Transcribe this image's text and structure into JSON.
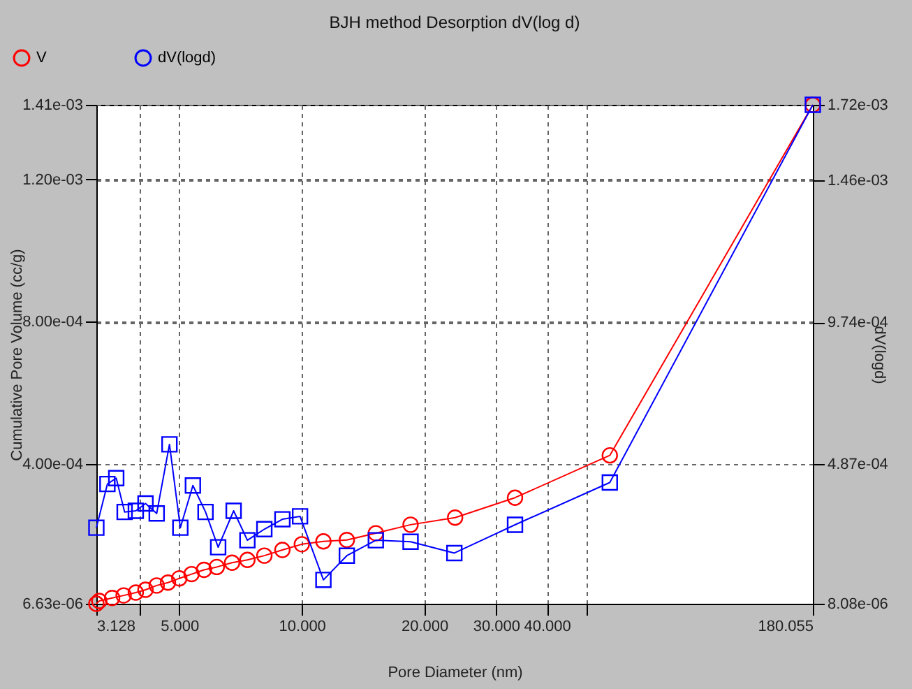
{
  "chart_data": {
    "type": "line",
    "title": "BJH method Desorption  dV(log d)",
    "xlabel": "Pore Diameter (nm)",
    "ylabel": "Cumulative Pore Volume (cc/g)",
    "y2label": "dV(logd)",
    "log": "x",
    "grid": true,
    "legend": "top left",
    "line_style": "solid",
    "xlim": [
      3.128,
      180.055
    ],
    "xticks": [
      3.128,
      {
        "value": 4,
        "label": null
      },
      {
        "value": 5,
        "label": "5.000"
      },
      {
        "value": 10,
        "label": "10.000"
      },
      {
        "value": 20,
        "label": "20.000"
      },
      {
        "value": 30,
        "label": "30.000"
      },
      {
        "value": 40,
        "label": "40.000"
      },
      {
        "value": 50,
        "label": null
      },
      180.055
    ],
    "ylim": [
      6.63e-06,
      0.00141
    ],
    "yticks": [
      {
        "value": 6.63e-06,
        "label": "6.63e-06"
      },
      {
        "value": 0.0004,
        "label": "4.00e-04"
      },
      {
        "value": 0.0008,
        "label": "8.00e-04"
      },
      {
        "value": 0.0012,
        "label": "1.20e-03"
      },
      {
        "value": 0.00141,
        "label": "1.41e-03"
      }
    ],
    "y2lim": [
      8.08e-06,
      0.00172
    ],
    "y2ticks": [
      {
        "value": 8.08e-06,
        "label": "8.08e-06"
      },
      {
        "value": 0.000487,
        "label": "4.87e-04"
      },
      {
        "value": 0.000974,
        "label": "9.74e-04"
      },
      {
        "value": 0.00146,
        "label": "1.46e-03"
      },
      {
        "value": 0.00172,
        "label": "1.72e-03"
      }
    ],
    "series": [
      {
        "name": "V",
        "color": "#ff0000",
        "marker": "circle",
        "x": [
          3.128,
          3.18,
          3.42,
          3.65,
          3.91,
          4.13,
          4.4,
          4.69,
          5.0,
          5.36,
          5.75,
          6.18,
          6.74,
          7.35,
          8.09,
          8.96,
          10.0,
          11.3,
          12.9,
          15.2,
          18.5,
          23.8,
          33.4,
          57.1,
          180.055
        ],
        "values": [
          6.63e-06,
          1.46e-05,
          2.3e-05,
          3e-05,
          3.8e-05,
          4.6e-05,
          5.8e-05,
          6.6e-05,
          7.8e-05,
          9e-05,
          0.000102,
          0.00011,
          0.000122,
          0.00013,
          0.000142,
          0.000158,
          0.000174,
          0.000182,
          0.000186,
          0.000205,
          0.000229,
          0.000249,
          0.000305,
          0.000424,
          0.00141
        ]
      },
      {
        "name": "dV(logd)",
        "color": "#0000ff",
        "marker": "square",
        "axis": "y2",
        "x": [
          3.128,
          3.33,
          3.5,
          3.67,
          3.91,
          4.13,
          4.4,
          4.73,
          5.03,
          5.4,
          5.8,
          6.23,
          6.8,
          7.35,
          8.09,
          8.96,
          9.9,
          11.3,
          12.9,
          15.2,
          18.5,
          23.7,
          33.4,
          57.1,
          180.055
        ],
        "values": [
          0.000269,
          0.000419,
          0.000439,
          0.000323,
          0.000327,
          0.000352,
          0.000318,
          0.000555,
          0.000269,
          0.000414,
          0.000323,
          0.000202,
          0.000327,
          0.000226,
          0.000264,
          0.000298,
          0.000308,
          9e-05,
          0.000173,
          0.000226,
          0.000221,
          0.000182,
          0.000279,
          0.000424,
          0.00172
        ]
      }
    ]
  }
}
